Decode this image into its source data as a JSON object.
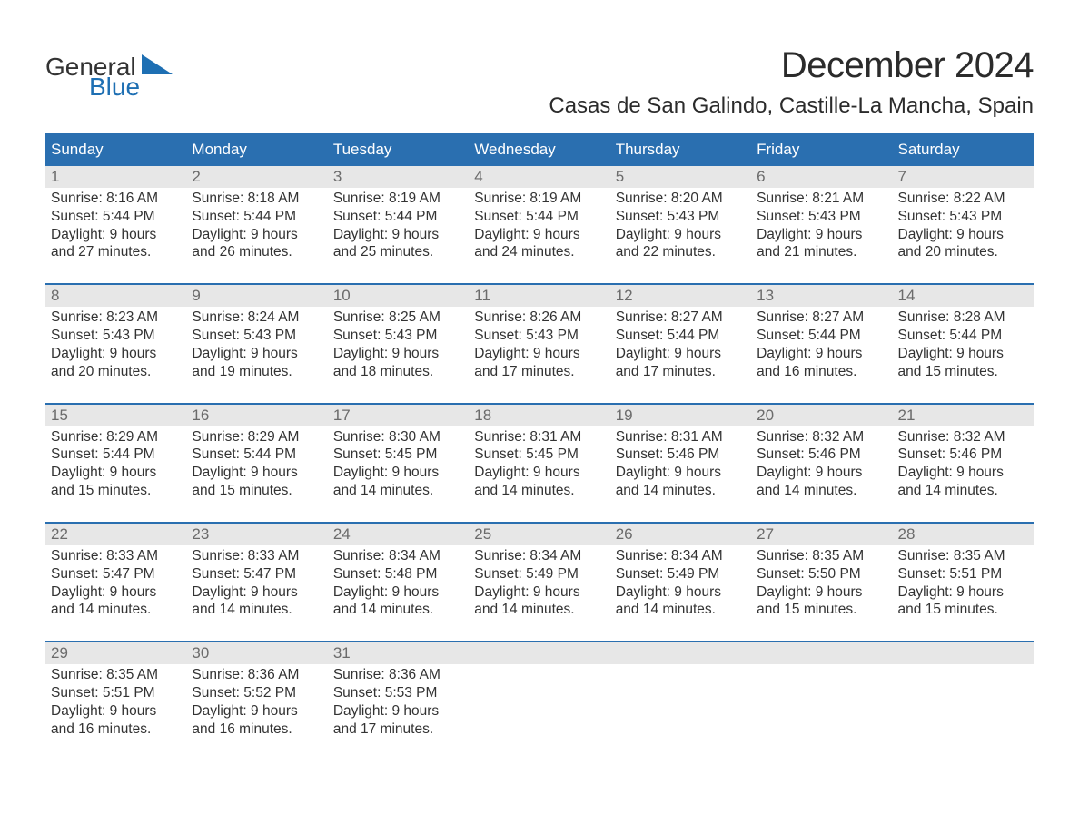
{
  "logo": {
    "part1": "General",
    "part2": "Blue",
    "color_general": "#333333",
    "color_blue": "#1e6fb3",
    "triangle_color": "#1e6fb3"
  },
  "title": "December 2024",
  "location": "Casas de San Galindo, Castille-La Mancha, Spain",
  "colors": {
    "header_bg": "#2a6fb0",
    "header_text": "#ffffff",
    "daynum_bg": "#e7e7e7",
    "daynum_text": "#6b6b6b",
    "body_text": "#333333",
    "rule": "#2a6fb0",
    "background": "#ffffff"
  },
  "typography": {
    "title_fontsize": 40,
    "location_fontsize": 24,
    "dow_fontsize": 17,
    "daynum_fontsize": 17,
    "info_fontsize": 15.5,
    "font_family": "Arial"
  },
  "days_of_week": [
    "Sunday",
    "Monday",
    "Tuesday",
    "Wednesday",
    "Thursday",
    "Friday",
    "Saturday"
  ],
  "weeks": [
    [
      {
        "n": "1",
        "sunrise": "Sunrise: 8:16 AM",
        "sunset": "Sunset: 5:44 PM",
        "d1": "Daylight: 9 hours",
        "d2": "and 27 minutes."
      },
      {
        "n": "2",
        "sunrise": "Sunrise: 8:18 AM",
        "sunset": "Sunset: 5:44 PM",
        "d1": "Daylight: 9 hours",
        "d2": "and 26 minutes."
      },
      {
        "n": "3",
        "sunrise": "Sunrise: 8:19 AM",
        "sunset": "Sunset: 5:44 PM",
        "d1": "Daylight: 9 hours",
        "d2": "and 25 minutes."
      },
      {
        "n": "4",
        "sunrise": "Sunrise: 8:19 AM",
        "sunset": "Sunset: 5:44 PM",
        "d1": "Daylight: 9 hours",
        "d2": "and 24 minutes."
      },
      {
        "n": "5",
        "sunrise": "Sunrise: 8:20 AM",
        "sunset": "Sunset: 5:43 PM",
        "d1": "Daylight: 9 hours",
        "d2": "and 22 minutes."
      },
      {
        "n": "6",
        "sunrise": "Sunrise: 8:21 AM",
        "sunset": "Sunset: 5:43 PM",
        "d1": "Daylight: 9 hours",
        "d2": "and 21 minutes."
      },
      {
        "n": "7",
        "sunrise": "Sunrise: 8:22 AM",
        "sunset": "Sunset: 5:43 PM",
        "d1": "Daylight: 9 hours",
        "d2": "and 20 minutes."
      }
    ],
    [
      {
        "n": "8",
        "sunrise": "Sunrise: 8:23 AM",
        "sunset": "Sunset: 5:43 PM",
        "d1": "Daylight: 9 hours",
        "d2": "and 20 minutes."
      },
      {
        "n": "9",
        "sunrise": "Sunrise: 8:24 AM",
        "sunset": "Sunset: 5:43 PM",
        "d1": "Daylight: 9 hours",
        "d2": "and 19 minutes."
      },
      {
        "n": "10",
        "sunrise": "Sunrise: 8:25 AM",
        "sunset": "Sunset: 5:43 PM",
        "d1": "Daylight: 9 hours",
        "d2": "and 18 minutes."
      },
      {
        "n": "11",
        "sunrise": "Sunrise: 8:26 AM",
        "sunset": "Sunset: 5:43 PM",
        "d1": "Daylight: 9 hours",
        "d2": "and 17 minutes."
      },
      {
        "n": "12",
        "sunrise": "Sunrise: 8:27 AM",
        "sunset": "Sunset: 5:44 PM",
        "d1": "Daylight: 9 hours",
        "d2": "and 17 minutes."
      },
      {
        "n": "13",
        "sunrise": "Sunrise: 8:27 AM",
        "sunset": "Sunset: 5:44 PM",
        "d1": "Daylight: 9 hours",
        "d2": "and 16 minutes."
      },
      {
        "n": "14",
        "sunrise": "Sunrise: 8:28 AM",
        "sunset": "Sunset: 5:44 PM",
        "d1": "Daylight: 9 hours",
        "d2": "and 15 minutes."
      }
    ],
    [
      {
        "n": "15",
        "sunrise": "Sunrise: 8:29 AM",
        "sunset": "Sunset: 5:44 PM",
        "d1": "Daylight: 9 hours",
        "d2": "and 15 minutes."
      },
      {
        "n": "16",
        "sunrise": "Sunrise: 8:29 AM",
        "sunset": "Sunset: 5:44 PM",
        "d1": "Daylight: 9 hours",
        "d2": "and 15 minutes."
      },
      {
        "n": "17",
        "sunrise": "Sunrise: 8:30 AM",
        "sunset": "Sunset: 5:45 PM",
        "d1": "Daylight: 9 hours",
        "d2": "and 14 minutes."
      },
      {
        "n": "18",
        "sunrise": "Sunrise: 8:31 AM",
        "sunset": "Sunset: 5:45 PM",
        "d1": "Daylight: 9 hours",
        "d2": "and 14 minutes."
      },
      {
        "n": "19",
        "sunrise": "Sunrise: 8:31 AM",
        "sunset": "Sunset: 5:46 PM",
        "d1": "Daylight: 9 hours",
        "d2": "and 14 minutes."
      },
      {
        "n": "20",
        "sunrise": "Sunrise: 8:32 AM",
        "sunset": "Sunset: 5:46 PM",
        "d1": "Daylight: 9 hours",
        "d2": "and 14 minutes."
      },
      {
        "n": "21",
        "sunrise": "Sunrise: 8:32 AM",
        "sunset": "Sunset: 5:46 PM",
        "d1": "Daylight: 9 hours",
        "d2": "and 14 minutes."
      }
    ],
    [
      {
        "n": "22",
        "sunrise": "Sunrise: 8:33 AM",
        "sunset": "Sunset: 5:47 PM",
        "d1": "Daylight: 9 hours",
        "d2": "and 14 minutes."
      },
      {
        "n": "23",
        "sunrise": "Sunrise: 8:33 AM",
        "sunset": "Sunset: 5:47 PM",
        "d1": "Daylight: 9 hours",
        "d2": "and 14 minutes."
      },
      {
        "n": "24",
        "sunrise": "Sunrise: 8:34 AM",
        "sunset": "Sunset: 5:48 PM",
        "d1": "Daylight: 9 hours",
        "d2": "and 14 minutes."
      },
      {
        "n": "25",
        "sunrise": "Sunrise: 8:34 AM",
        "sunset": "Sunset: 5:49 PM",
        "d1": "Daylight: 9 hours",
        "d2": "and 14 minutes."
      },
      {
        "n": "26",
        "sunrise": "Sunrise: 8:34 AM",
        "sunset": "Sunset: 5:49 PM",
        "d1": "Daylight: 9 hours",
        "d2": "and 14 minutes."
      },
      {
        "n": "27",
        "sunrise": "Sunrise: 8:35 AM",
        "sunset": "Sunset: 5:50 PM",
        "d1": "Daylight: 9 hours",
        "d2": "and 15 minutes."
      },
      {
        "n": "28",
        "sunrise": "Sunrise: 8:35 AM",
        "sunset": "Sunset: 5:51 PM",
        "d1": "Daylight: 9 hours",
        "d2": "and 15 minutes."
      }
    ],
    [
      {
        "n": "29",
        "sunrise": "Sunrise: 8:35 AM",
        "sunset": "Sunset: 5:51 PM",
        "d1": "Daylight: 9 hours",
        "d2": "and 16 minutes."
      },
      {
        "n": "30",
        "sunrise": "Sunrise: 8:36 AM",
        "sunset": "Sunset: 5:52 PM",
        "d1": "Daylight: 9 hours",
        "d2": "and 16 minutes."
      },
      {
        "n": "31",
        "sunrise": "Sunrise: 8:36 AM",
        "sunset": "Sunset: 5:53 PM",
        "d1": "Daylight: 9 hours",
        "d2": "and 17 minutes."
      },
      {
        "n": "",
        "sunrise": "",
        "sunset": "",
        "d1": "",
        "d2": ""
      },
      {
        "n": "",
        "sunrise": "",
        "sunset": "",
        "d1": "",
        "d2": ""
      },
      {
        "n": "",
        "sunrise": "",
        "sunset": "",
        "d1": "",
        "d2": ""
      },
      {
        "n": "",
        "sunrise": "",
        "sunset": "",
        "d1": "",
        "d2": ""
      }
    ]
  ]
}
